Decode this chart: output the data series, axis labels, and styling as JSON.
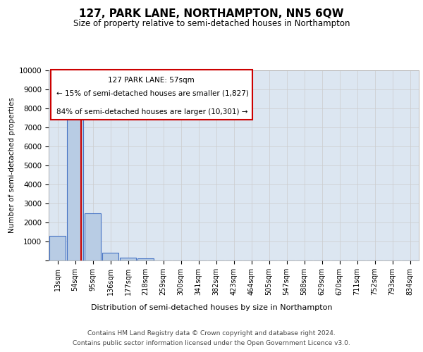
{
  "title": "127, PARK LANE, NORTHAMPTON, NN5 6QW",
  "subtitle": "Size of property relative to semi-detached houses in Northampton",
  "xlabel": "Distribution of semi-detached houses by size in Northampton",
  "ylabel": "Number of semi-detached properties",
  "footer_line1": "Contains HM Land Registry data © Crown copyright and database right 2024.",
  "footer_line2": "Contains public sector information licensed under the Open Government Licence v3.0.",
  "categories": [
    "13sqm",
    "54sqm",
    "95sqm",
    "136sqm",
    "177sqm",
    "218sqm",
    "259sqm",
    "300sqm",
    "341sqm",
    "382sqm",
    "423sqm",
    "464sqm",
    "505sqm",
    "547sqm",
    "588sqm",
    "629sqm",
    "670sqm",
    "711sqm",
    "752sqm",
    "793sqm",
    "834sqm"
  ],
  "values": [
    1300,
    8000,
    2500,
    400,
    150,
    100,
    0,
    0,
    0,
    0,
    0,
    0,
    0,
    0,
    0,
    0,
    0,
    0,
    0,
    0,
    0
  ],
  "bar_color": "#b8cce4",
  "bar_edge_color": "#4472c4",
  "grid_color": "#cccccc",
  "background_color": "#dce6f1",
  "red_line_x": 1.35,
  "annotation_text_line1": "127 PARK LANE: 57sqm",
  "annotation_text_line2": "← 15% of semi-detached houses are smaller (1,827)",
  "annotation_text_line3": "84% of semi-detached houses are larger (10,301) →",
  "annotation_box_color": "#ffffff",
  "annotation_box_edge": "#cc0000",
  "ylim": [
    0,
    10000
  ],
  "yticks": [
    0,
    1000,
    2000,
    3000,
    4000,
    5000,
    6000,
    7000,
    8000,
    9000,
    10000
  ]
}
